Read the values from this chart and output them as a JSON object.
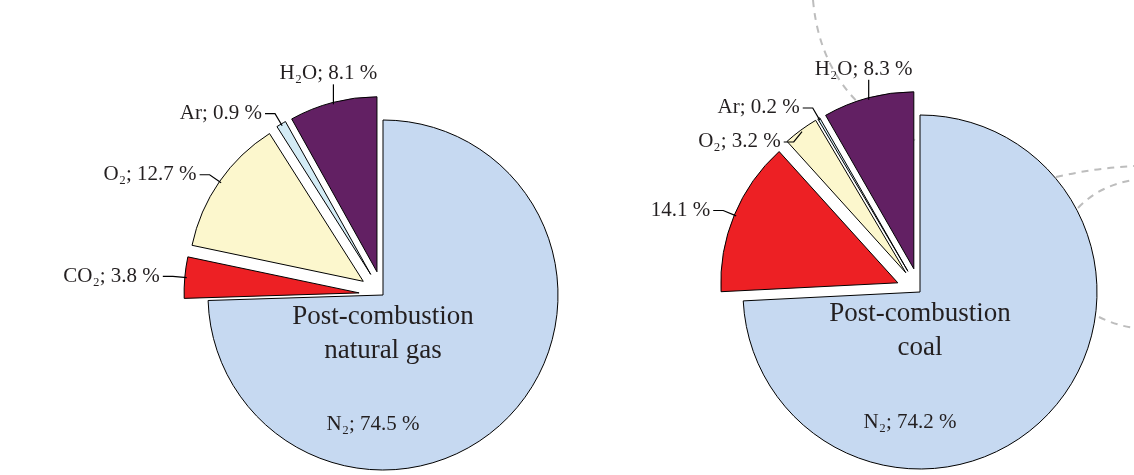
{
  "chart_data": [
    {
      "type": "pie",
      "title": "Post-combustion\nnatural gas",
      "categories": [
        "N₂",
        "CO₂",
        "O₂",
        "Ar",
        "H₂O"
      ],
      "values": [
        74.5,
        3.8,
        12.7,
        0.9,
        8.1
      ],
      "colors": [
        "#c6d9f1",
        "#ed2024",
        "#fcf7cd",
        "#d3ebf5",
        "#622063"
      ],
      "value_labels": [
        "74.5 %",
        "3.8 %",
        "12.7 %",
        "0.9 %",
        "8.1 %"
      ]
    },
    {
      "type": "pie",
      "title": "Post-combustion\ncoal",
      "categories": [
        "N₂",
        null,
        "O₂",
        "Ar",
        "H₂O"
      ],
      "values": [
        74.2,
        14.1,
        3.2,
        0.2,
        8.3
      ],
      "colors": [
        "#c6d9f1",
        "#ed2024",
        "#fcf7cd",
        "#d3ebf5",
        "#622063"
      ],
      "value_labels": [
        "74.2 %",
        "14.1 %",
        "3.2 %",
        "0.2 %",
        "8.3 %"
      ]
    }
  ]
}
